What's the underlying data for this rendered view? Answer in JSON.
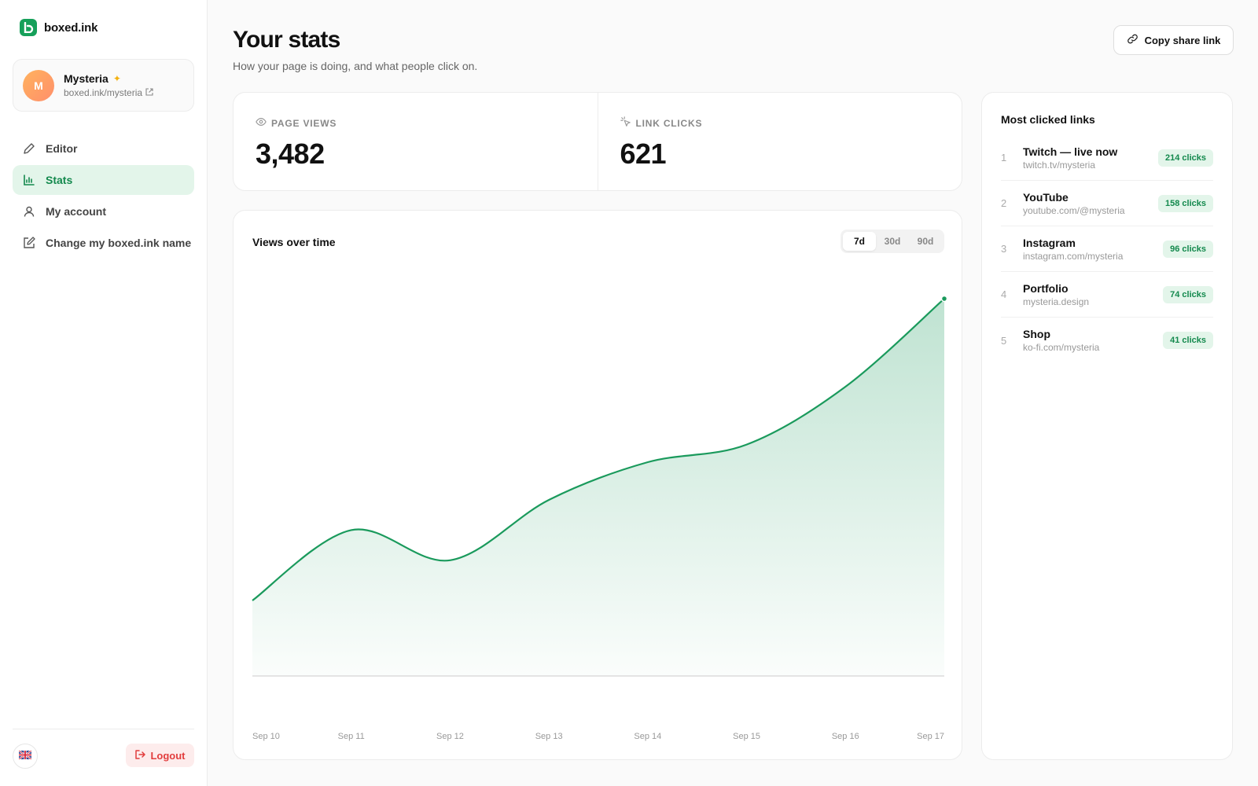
{
  "brand": {
    "name": "boxed.ink",
    "logo_letter": "b"
  },
  "profile": {
    "initial": "M",
    "name": "Mysteria",
    "url": "boxed.ink/mysteria"
  },
  "nav": [
    {
      "label": "Editor",
      "icon": "pencil-icon"
    },
    {
      "label": "Stats",
      "icon": "bar-chart-icon",
      "active": true
    },
    {
      "label": "My account",
      "icon": "user-icon"
    },
    {
      "label": "Change my boxed.ink name",
      "icon": "edit-square-icon"
    }
  ],
  "footer": {
    "language_icon": "uk-flag-icon",
    "logout_label": "Logout"
  },
  "header": {
    "title": "Your stats",
    "subtitle": "How your page is doing, and what people click on.",
    "share_label": "Copy share link"
  },
  "stats": {
    "page_views_label": "PAGE VIEWS",
    "page_views_value": "3,482",
    "link_clicks_label": "LINK CLICKS",
    "link_clicks_value": "621"
  },
  "chart": {
    "title": "Views over time",
    "ranges": [
      "7d",
      "30d",
      "90d"
    ],
    "active_range": "7d"
  },
  "chart_data": {
    "type": "area",
    "title": "Views over time",
    "categories": [
      "Sep 10",
      "Sep 11",
      "Sep 12",
      "Sep 13",
      "Sep 14",
      "Sep 15",
      "Sep 16",
      "Sep 17"
    ],
    "values": [
      30,
      58,
      46,
      70,
      85,
      92,
      115,
      150
    ],
    "ylim": [
      0,
      160
    ],
    "grid": false,
    "color": "#1a9a5c"
  },
  "links": {
    "title": "Most clicked links",
    "items": [
      {
        "rank": "1",
        "name": "Twitch — live now",
        "url": "twitch.tv/mysteria",
        "clicks": "214 clicks"
      },
      {
        "rank": "2",
        "name": "YouTube",
        "url": "youtube.com/@mysteria",
        "clicks": "158 clicks"
      },
      {
        "rank": "3",
        "name": "Instagram",
        "url": "instagram.com/mysteria",
        "clicks": "96 clicks"
      },
      {
        "rank": "4",
        "name": "Portfolio",
        "url": "mysteria.design",
        "clicks": "74 clicks"
      },
      {
        "rank": "5",
        "name": "Shop",
        "url": "ko-fi.com/mysteria",
        "clicks": "41 clicks"
      }
    ]
  },
  "colors": {
    "accent": "#13894d",
    "accent_bg": "#e3f5ea",
    "danger": "#e23d3d"
  }
}
